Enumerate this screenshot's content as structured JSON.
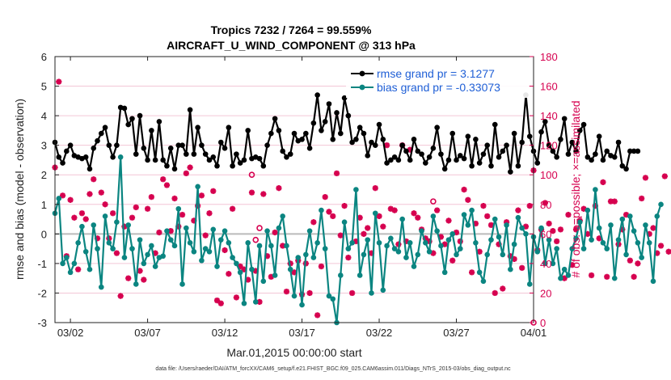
{
  "chart_data": {
    "type": "line",
    "title": "Tropics 7232 / 7264 = 99.559%",
    "subtitle": "AIRCRAFT_U_WIND_COMPONENT @ 313 hPa",
    "xlabel": "Mar.01,2015 00:00:00 start",
    "ylabel": "rmse and bias (model - observation)",
    "ylabel_right": "# of obs: o=possible; ×=assimilated",
    "footnote": "data file: /Users/raeder/DAI/ATM_forcXX/CAM6_setup/f.e21.FHIST_BGC.f09_025.CAM6assim.011/Diags_NTrS_2015-03/obs_diag_output.nc",
    "xlim": [
      0,
      31
    ],
    "ylim": [
      -3,
      6
    ],
    "ylim_right": [
      0,
      180
    ],
    "x_ticks": [
      1,
      6,
      11,
      16,
      21,
      26,
      31
    ],
    "x_tick_labels": [
      "03/02",
      "03/07",
      "03/12",
      "03/17",
      "03/22",
      "03/27",
      "04/01"
    ],
    "y_ticks": [
      -3,
      -2,
      -1,
      0,
      1,
      2,
      3,
      4,
      5,
      6
    ],
    "y_tick_labels": [
      "-3",
      "-2",
      "-1",
      "0",
      "1",
      "2",
      "3",
      "4",
      "5",
      "6"
    ],
    "y_right_ticks": [
      0,
      20,
      40,
      60,
      80,
      100,
      120,
      140,
      160,
      180
    ],
    "y_right_tick_labels": [
      "0",
      "20",
      "40",
      "60",
      "80",
      "100",
      "120",
      "140",
      "160",
      "180"
    ],
    "x_step_days": 0.25,
    "series": [
      {
        "name": "rmse grand pr = 3.1277",
        "color": "#000000",
        "axis": "left",
        "values": [
          3.1,
          2.6,
          2.4,
          2.8,
          3.0,
          2.65,
          2.6,
          2.55,
          2.6,
          2.2,
          2.9,
          3.15,
          3.4,
          3.6,
          3.0,
          2.6,
          3.0,
          4.28,
          4.25,
          3.7,
          3.9,
          2.7,
          4.0,
          2.9,
          2.5,
          3.5,
          2.5,
          3.8,
          2.5,
          2.3,
          2.9,
          2.2,
          3.0,
          3.0,
          2.7,
          4.2,
          2.7,
          3.6,
          3.0,
          2.7,
          2.5,
          2.6,
          2.3,
          3.1,
          2.9,
          3.6,
          2.3,
          2.7,
          2.4,
          2.5,
          3.5,
          2.55,
          2.6,
          2.55,
          2.3,
          3.0,
          3.4,
          3.9,
          3.5,
          2.8,
          2.6,
          2.7,
          3.4,
          3.15,
          3.2,
          3.4,
          2.9,
          3.75,
          4.7,
          3.5,
          3.8,
          4.4,
          3.2,
          4.1,
          3.4,
          4.6,
          4.0,
          3.1,
          3.2,
          3.6,
          3.4,
          2.65,
          3.1,
          3.0,
          3.7,
          3.2,
          2.4,
          2.5,
          2.6,
          2.5,
          3.0,
          2.8,
          2.5,
          3.2,
          2.8,
          2.7,
          2.4,
          2.6,
          2.9,
          3.6,
          2.7,
          2.2,
          2.5,
          3.4,
          2.5,
          2.65,
          2.55,
          3.3,
          2.3,
          3.2,
          2.4,
          2.7,
          3.0,
          2.3,
          3.7,
          2.6,
          2.8,
          3.0,
          2.1,
          3.4,
          2.3,
          3.1,
          4.7,
          3.3,
          2.8,
          2.4,
          3.45,
          3.8,
          3.0,
          2.8,
          2.6,
          3.2,
          3.9,
          2.7,
          3.1,
          2.8,
          3.5,
          3.7,
          2.6,
          2.5,
          2.7,
          3.3,
          2.5,
          2.8,
          2.65,
          2.6,
          3.1,
          2.3,
          2.2,
          2.8,
          2.8,
          2.8
        ]
      },
      {
        "name": "bias grand pr = -0.33073",
        "color": "#0b8581",
        "axis": "left",
        "values": [
          0.7,
          1.2,
          -1.0,
          -0.8,
          -1.3,
          -1.0,
          -0.3,
          0.25,
          -0.6,
          -1.2,
          0.3,
          -0.5,
          -1.8,
          0.6,
          -0.3,
          -0.5,
          0.4,
          2.6,
          -0.8,
          0.3,
          -0.5,
          -1.7,
          -0.2,
          -1.0,
          -0.7,
          -0.4,
          -1.1,
          -0.8,
          -0.75,
          0.1,
          -0.2,
          -0.4,
          0.85,
          -1.7,
          0.2,
          -0.3,
          -0.6,
          1.6,
          -0.9,
          -0.5,
          -0.6,
          0.15,
          -1.1,
          -0.2,
          0.1,
          -0.3,
          -0.8,
          -1.0,
          -1.3,
          -2.35,
          -0.3,
          -1.2,
          -2.3,
          -0.4,
          -1.6,
          0.1,
          -0.4,
          -1.4,
          0.2,
          0.6,
          -0.4,
          -1.2,
          -2.1,
          -0.8,
          -2.4,
          -0.7,
          0.1,
          -0.8,
          -0.3,
          0.8,
          -0.5,
          -2.1,
          -2.2,
          -3.0,
          -1.4,
          0.4,
          -0.5,
          -0.3,
          1.5,
          -1.4,
          -0.7,
          -0.2,
          -2.0,
          0.7,
          -0.3,
          -1.9,
          -0.4,
          -0.15,
          -0.5,
          -0.6,
          0.5,
          -0.8,
          -0.3,
          -1.1,
          -0.7,
          0.1,
          -0.3,
          -0.6,
          0.6,
          0.1,
          -0.4,
          -1.3,
          -0.2,
          0.0,
          -0.7,
          -0.5,
          0.65,
          0.3,
          0.8,
          -0.3,
          -1.3,
          -1.6,
          -0.7,
          -0.2,
          0.5,
          -0.1,
          -0.7,
          0.3,
          -1.2,
          -0.35,
          0.55,
          0.2,
          0.0,
          -1.7,
          -0.1,
          -0.6,
          0.2,
          -1.0,
          -0.2,
          -1.0,
          -0.5,
          -1.5,
          -1.2,
          -1.4,
          -0.5,
          -0.15,
          0.4,
          -0.5,
          0.8,
          -0.2,
          1.5,
          0.2,
          -0.3,
          -0.5,
          0.3,
          -1.5,
          -0.2,
          0.5,
          -0.7,
          0.6,
          0.1,
          -0.3,
          -0.8,
          0.3,
          -0.3,
          -1.6,
          0.6,
          1.0
        ]
      },
      {
        "name": "obs assimilated",
        "color": "#d6004f",
        "axis": "right",
        "marker": "asterisk",
        "values": [
          105,
          163,
          86,
          45,
          83,
          71,
          36,
          74,
          70,
          87,
          97,
          57,
          88,
          80,
          57,
          74,
          47,
          18,
          65,
          30,
          71,
          78,
          35,
          29,
          77,
          85,
          47,
          61,
          97,
          93,
          62,
          84,
          65,
          73,
          101,
          105,
          69,
          79,
          86,
          59,
          74,
          89,
          15,
          13,
          49,
          33,
          77,
          17,
          38,
          36,
          29,
          88,
          35,
          14,
          87,
          45,
          31,
          61,
          91,
          52,
          21,
          40,
          34,
          42,
          19,
          40,
          20,
          68,
          5,
          38,
          85,
          75,
          72,
          101,
          59,
          79,
          44,
          20,
          55,
          71,
          60,
          64,
          47,
          91,
          72,
          65,
          120,
          77,
          76,
          53,
          120,
          55,
          117,
          74,
          71,
          63,
          57,
          55,
          47,
          76,
          58,
          53,
          69,
          42,
          61,
          55,
          90,
          83,
          34,
          67,
          48,
          79,
          72,
          66,
          20,
          53,
          23,
          68,
          45,
          43,
          76,
          37,
          65,
          79,
          103,
          49,
          63,
          81,
          67,
          62,
          55,
          63,
          30,
          73,
          39,
          63,
          69,
          77,
          60,
          32,
          79,
          57,
          95,
          31,
          82,
          82,
          53,
          63,
          73,
          42,
          31,
          40,
          84,
          98,
          60,
          64,
          47,
          52,
          99,
          48
        ]
      },
      {
        "name": "obs possible",
        "color": "#d6004f",
        "axis": "right",
        "marker": "circle",
        "values": [
          105,
          163,
          86,
          45,
          83,
          71,
          36,
          74,
          70,
          87,
          97,
          57,
          88,
          80,
          57,
          74,
          47,
          18,
          65,
          30,
          71,
          78,
          35,
          29,
          77,
          85,
          47,
          61,
          97,
          93,
          62,
          84,
          65,
          73,
          101,
          105,
          69,
          79,
          86,
          59,
          74,
          89,
          15,
          13,
          49,
          33,
          77,
          17,
          38,
          36,
          29,
          88,
          35,
          14,
          87,
          45,
          31,
          61,
          91,
          52,
          21,
          40,
          34,
          42,
          19,
          40,
          20,
          68,
          5,
          38,
          85,
          75,
          72,
          101,
          59,
          79,
          44,
          20,
          55,
          71,
          60,
          64,
          47,
          91,
          72,
          65,
          120,
          77,
          76,
          53,
          120,
          55,
          117,
          74,
          71,
          63,
          57,
          55,
          47,
          76,
          58,
          53,
          69,
          42,
          61,
          55,
          90,
          83,
          34,
          67,
          48,
          79,
          72,
          66,
          20,
          53,
          23,
          68,
          45,
          43,
          76,
          37,
          65,
          79,
          103,
          49,
          63,
          81,
          67,
          62,
          55,
          63,
          30,
          73,
          39,
          63,
          69,
          77,
          60,
          32,
          79,
          57,
          95,
          31,
          82,
          82,
          53,
          63,
          73,
          42,
          31,
          40,
          84,
          98,
          60,
          64,
          47,
          52,
          99,
          48
        ]
      }
    ],
    "extra_possible_markers": [
      {
        "x": 12.75,
        "y": 100
      },
      {
        "x": 13.25,
        "y": 64
      },
      {
        "x": 13.0,
        "y": 56
      },
      {
        "x": 24.5,
        "y": 82
      },
      {
        "x": 31.0,
        "y": 0
      }
    ]
  }
}
